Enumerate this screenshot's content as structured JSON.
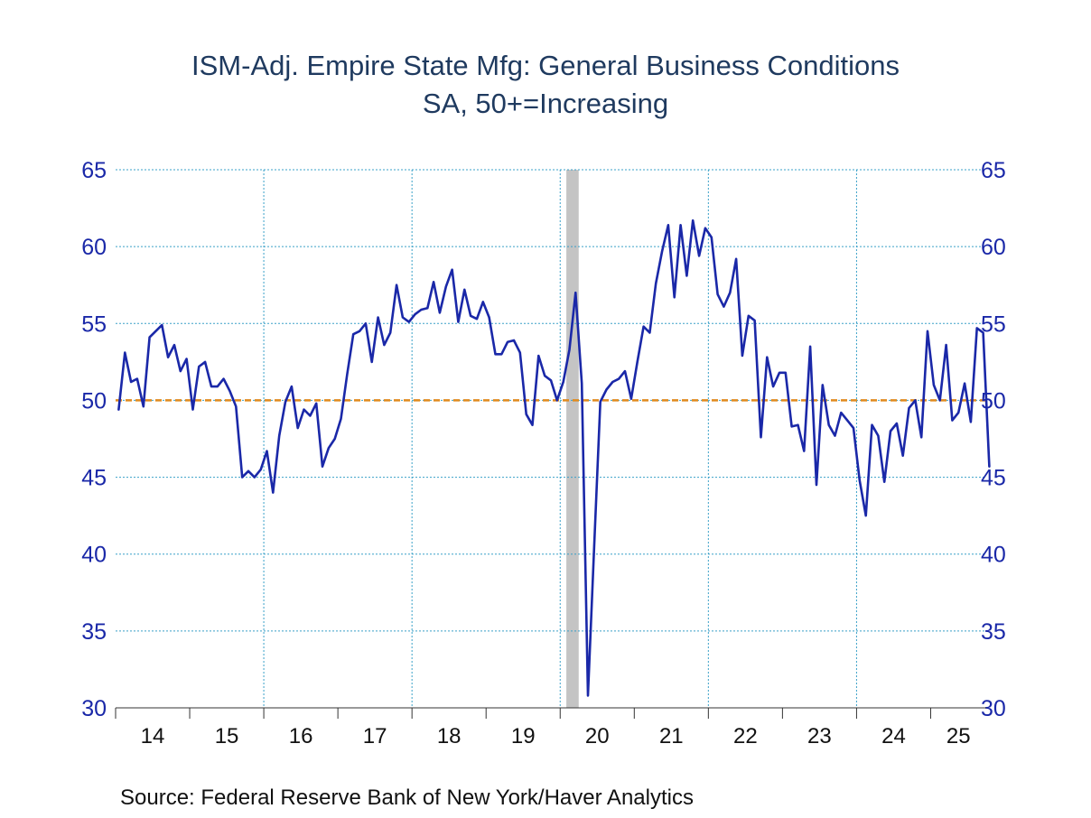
{
  "chart_data": {
    "type": "line",
    "title": "ISM-Adj. Empire State Mfg: General Business Conditions",
    "subtitle": "SA, 50+=Increasing",
    "source": "Source:  Federal Reserve Bank of New York/Haver Analytics",
    "xlabel": "",
    "ylabel": "",
    "ylim": [
      30,
      65
    ],
    "y_ticks": [
      30,
      35,
      40,
      45,
      50,
      55,
      60,
      65
    ],
    "x_tick_labels": [
      "14",
      "15",
      "16",
      "17",
      "18",
      "19",
      "20",
      "21",
      "22",
      "23",
      "24",
      "25"
    ],
    "x_range": [
      "2014-01",
      "2025-09"
    ],
    "grid": true,
    "dual_y_axis": true,
    "reference_line": {
      "value": 50,
      "color": "#e08a1e",
      "style": "dashed"
    },
    "recession_shading": {
      "start": "2020-02",
      "end": "2020-04",
      "color": "#c4c4c4"
    },
    "colors": {
      "series": "#1a28a8",
      "axis_text": "#1a28a8",
      "grid": "#3aa0c8",
      "title": "#1f3a5f"
    },
    "series": [
      {
        "start": "2014-01",
        "frequency": "monthly",
        "values": [
          49.4,
          53.1,
          51.2,
          51.4,
          49.6,
          54.1,
          54.5,
          54.9,
          52.8,
          53.6,
          51.9,
          52.7,
          49.4,
          52.2,
          52.5,
          50.9,
          50.9,
          51.4,
          50.6,
          49.6,
          45.0,
          45.4,
          45.0,
          45.5,
          46.7,
          44.0,
          47.7,
          49.9,
          50.9,
          48.2,
          49.4,
          49.0,
          49.8,
          45.7,
          46.9,
          47.5,
          48.8,
          51.7,
          54.3,
          54.5,
          55.0,
          52.5,
          55.4,
          53.6,
          54.4,
          57.5,
          55.4,
          55.1,
          55.6,
          55.9,
          56.0,
          57.7,
          55.7,
          57.4,
          58.5,
          55.1,
          57.2,
          55.5,
          55.3,
          56.4,
          55.4,
          53.0,
          53.0,
          53.8,
          53.9,
          53.1,
          49.1,
          48.4,
          52.9,
          51.6,
          51.3,
          50.0,
          51.2,
          53.3,
          57.0,
          51.1,
          30.8,
          40.5,
          49.9,
          50.7,
          51.2,
          51.4,
          51.9,
          50.1,
          52.5,
          54.8,
          54.4,
          57.6,
          59.7,
          61.4,
          56.7,
          61.4,
          58.1,
          61.7,
          59.4,
          61.2,
          60.6,
          56.9,
          56.1,
          57.0,
          59.2,
          52.9,
          55.5,
          55.2,
          47.6,
          52.8,
          50.9,
          51.8,
          51.8,
          48.3,
          48.4,
          46.7,
          53.5,
          44.5,
          51.0,
          48.4,
          47.7,
          49.2,
          48.7,
          48.2,
          44.8,
          42.5,
          48.4,
          47.7,
          44.7,
          48.0,
          48.5,
          46.4,
          49.5,
          50.0,
          47.6,
          54.5,
          51.0,
          50.0,
          53.6,
          48.7,
          49.2,
          51.1,
          48.6,
          54.7,
          54.4,
          45.7
        ]
      }
    ]
  }
}
